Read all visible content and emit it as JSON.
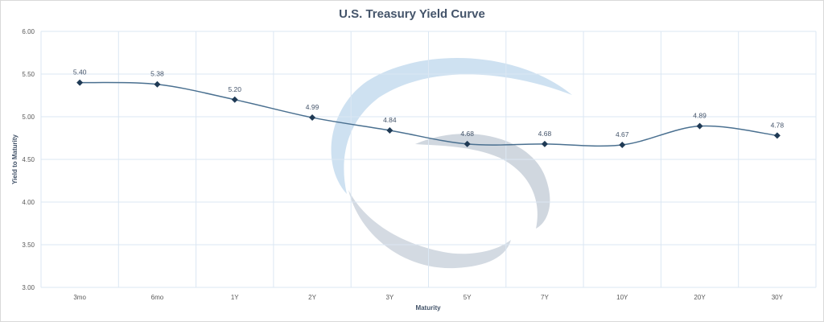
{
  "chart_data": {
    "type": "line",
    "title": "U.S. Treasury Yield Curve",
    "xlabel": "Maturity",
    "ylabel": "Yield to Maturity",
    "categories": [
      "3mo",
      "6mo",
      "1Y",
      "2Y",
      "3Y",
      "5Y",
      "7Y",
      "10Y",
      "20Y",
      "30Y"
    ],
    "series": [
      {
        "values": [
          5.4,
          5.38,
          5.2,
          4.99,
          4.84,
          4.68,
          4.68,
          4.67,
          4.89,
          4.78
        ],
        "labels": [
          "5.40",
          "5.38",
          "5.20",
          "4.99",
          "4.84",
          "4.68",
          "4.68",
          "4.67",
          "4.89",
          "4.78"
        ],
        "color": "#44546a"
      }
    ],
    "ylim": [
      3.0,
      6.0
    ],
    "yticks": [
      "3.00",
      "3.50",
      "4.00",
      "4.50",
      "5.00",
      "5.50",
      "6.00"
    ],
    "grid": true,
    "marker": "diamond",
    "smooth": true,
    "gridColor": "#dbe7f3"
  }
}
